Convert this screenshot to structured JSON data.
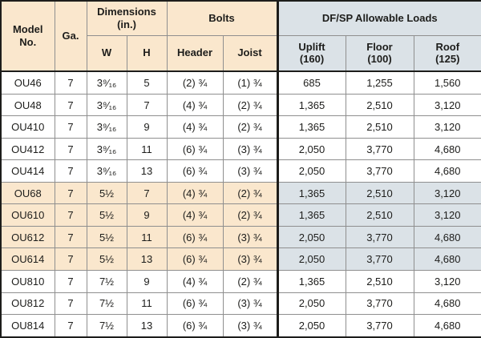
{
  "table_title": "DF/SP Allowable Loads table",
  "colors": {
    "header_left_bg": "#fae7cd",
    "header_right_bg": "#dbe2e7",
    "band_left_bg": "#fae7cd",
    "band_right_bg": "#dbe2e7",
    "border_dark": "#1d1d1b",
    "border_light": "#8f8f8f"
  },
  "header": {
    "model": "Model\nNo.",
    "ga": "Ga.",
    "dimensions": "Dimensions\n(in.)",
    "w": "W",
    "h": "H",
    "bolts": "Bolts",
    "bolts_header": "Header",
    "bolts_joist": "Joist",
    "loads": "DF/SP Allowable Loads",
    "uplift": "Uplift\n(160)",
    "floor": "Floor\n(100)",
    "roof": "Roof\n(125)"
  },
  "rows": [
    {
      "model": "OU46",
      "ga": "7",
      "w": "3⁹⁄₁₆",
      "h": "5",
      "bolts_header": "(2) ¾",
      "bolts_joist": "(1) ¾",
      "uplift": "685",
      "floor": "1,255",
      "roof": "1,560",
      "highlight": false
    },
    {
      "model": "OU48",
      "ga": "7",
      "w": "3⁹⁄₁₆",
      "h": "7",
      "bolts_header": "(4) ¾",
      "bolts_joist": "(2) ¾",
      "uplift": "1,365",
      "floor": "2,510",
      "roof": "3,120",
      "highlight": false
    },
    {
      "model": "OU410",
      "ga": "7",
      "w": "3⁹⁄₁₆",
      "h": "9",
      "bolts_header": "(4) ¾",
      "bolts_joist": "(2) ¾",
      "uplift": "1,365",
      "floor": "2,510",
      "roof": "3,120",
      "highlight": false
    },
    {
      "model": "OU412",
      "ga": "7",
      "w": "3⁹⁄₁₆",
      "h": "11",
      "bolts_header": "(6) ¾",
      "bolts_joist": "(3) ¾",
      "uplift": "2,050",
      "floor": "3,770",
      "roof": "4,680",
      "highlight": false
    },
    {
      "model": "OU414",
      "ga": "7",
      "w": "3⁹⁄₁₆",
      "h": "13",
      "bolts_header": "(6) ¾",
      "bolts_joist": "(3) ¾",
      "uplift": "2,050",
      "floor": "3,770",
      "roof": "4,680",
      "highlight": false
    },
    {
      "model": "OU68",
      "ga": "7",
      "w": "5½",
      "h": "7",
      "bolts_header": "(4) ¾",
      "bolts_joist": "(2) ¾",
      "uplift": "1,365",
      "floor": "2,510",
      "roof": "3,120",
      "highlight": true
    },
    {
      "model": "OU610",
      "ga": "7",
      "w": "5½",
      "h": "9",
      "bolts_header": "(4) ¾",
      "bolts_joist": "(2) ¾",
      "uplift": "1,365",
      "floor": "2,510",
      "roof": "3,120",
      "highlight": true
    },
    {
      "model": "OU612",
      "ga": "7",
      "w": "5½",
      "h": "11",
      "bolts_header": "(6) ¾",
      "bolts_joist": "(3) ¾",
      "uplift": "2,050",
      "floor": "3,770",
      "roof": "4,680",
      "highlight": true
    },
    {
      "model": "OU614",
      "ga": "7",
      "w": "5½",
      "h": "13",
      "bolts_header": "(6) ¾",
      "bolts_joist": "(3) ¾",
      "uplift": "2,050",
      "floor": "3,770",
      "roof": "4,680",
      "highlight": true
    },
    {
      "model": "OU810",
      "ga": "7",
      "w": "7½",
      "h": "9",
      "bolts_header": "(4) ¾",
      "bolts_joist": "(2) ¾",
      "uplift": "1,365",
      "floor": "2,510",
      "roof": "3,120",
      "highlight": false
    },
    {
      "model": "OU812",
      "ga": "7",
      "w": "7½",
      "h": "11",
      "bolts_header": "(6) ¾",
      "bolts_joist": "(3) ¾",
      "uplift": "2,050",
      "floor": "3,770",
      "roof": "4,680",
      "highlight": false
    },
    {
      "model": "OU814",
      "ga": "7",
      "w": "7½",
      "h": "13",
      "bolts_header": "(6) ¾",
      "bolts_joist": "(3) ¾",
      "uplift": "2,050",
      "floor": "3,770",
      "roof": "4,680",
      "highlight": false
    }
  ]
}
